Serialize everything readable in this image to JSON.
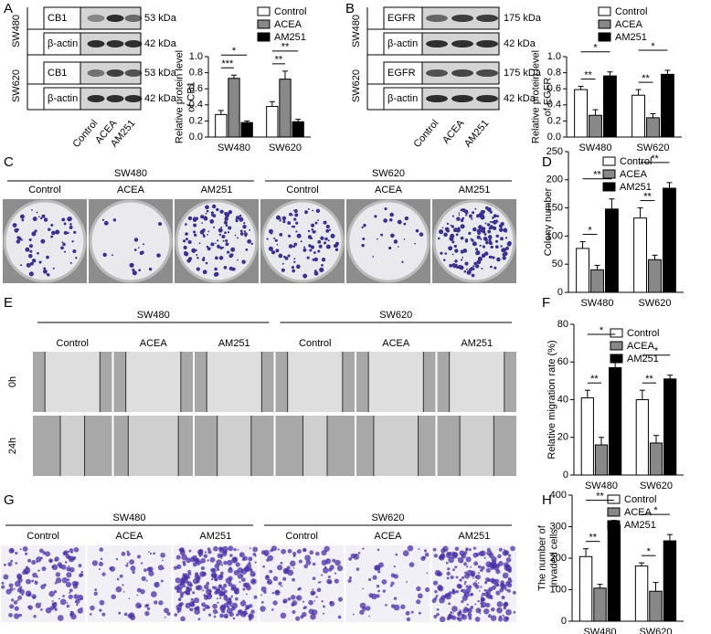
{
  "panels": {
    "letters": [
      "A",
      "B",
      "C",
      "D",
      "E",
      "F",
      "G",
      "H"
    ],
    "blot_A": {
      "cell_lines": [
        "SW480",
        "SW620"
      ],
      "proteins": [
        "CB1",
        "β-actin",
        "CB1",
        "β-actin"
      ],
      "sizes": [
        "53 kDa",
        "42 kDa",
        "53 kDa",
        "42 kDa"
      ],
      "lanes": [
        "Control",
        "ACEA",
        "AM251"
      ]
    },
    "blot_B": {
      "cell_lines": [
        "SW480",
        "SW620"
      ],
      "proteins": [
        "EGFR",
        "β-actin",
        "EGFR",
        "β-actin"
      ],
      "sizes": [
        "175 kDa",
        "42 kDa",
        "175 kDa",
        "42 kDa"
      ],
      "lanes": [
        "Control",
        "ACEA",
        "AM251"
      ]
    },
    "colony": {
      "cell_lines": [
        "SW480",
        "SW620"
      ],
      "lanes": [
        "Control",
        "ACEA",
        "AM251",
        "Control",
        "ACEA",
        "AM251"
      ]
    },
    "wound": {
      "cell_lines": [
        "SW480",
        "SW620"
      ],
      "lanes": [
        "Control",
        "ACEA",
        "AM251",
        "Control",
        "ACEA",
        "AM251"
      ],
      "times": [
        "0h",
        "24h"
      ]
    },
    "invasion": {
      "cell_lines": [
        "SW480",
        "SW620"
      ],
      "lanes": [
        "Control",
        "ACEA",
        "AM251",
        "Control",
        "ACEA",
        "AM251"
      ]
    }
  },
  "chart_data": [
    {
      "type": "bar",
      "y_label": [
        "Relative protein level",
        "of CB1"
      ],
      "categories": [
        "SW480",
        "SW620"
      ],
      "series": [
        {
          "name": "Control",
          "color": "#ffffff",
          "values": [
            0.28,
            0.38
          ],
          "errors": [
            0.05,
            0.06
          ]
        },
        {
          "name": "ACEA",
          "color": "#888888",
          "values": [
            0.73,
            0.72
          ],
          "errors": [
            0.04,
            0.1
          ]
        },
        {
          "name": "AM251",
          "color": "#000000",
          "values": [
            0.18,
            0.19
          ],
          "errors": [
            0.02,
            0.03
          ]
        }
      ],
      "ylim": [
        0,
        1
      ],
      "yticks": [
        {
          "value": 0,
          "label": "0.0"
        },
        0.2,
        0.4,
        0.6,
        0.8,
        {
          "value": 1,
          "label": "1.0"
        }
      ],
      "annotations": [
        "*",
        "***",
        "**",
        "**"
      ]
    },
    {
      "type": "bar",
      "y_label": [
        "Relative protein level",
        "of EGFR"
      ],
      "categories": [
        "SW480",
        "SW620"
      ],
      "series": [
        {
          "name": "Control",
          "color": "#ffffff",
          "values": [
            0.59,
            0.52
          ],
          "errors": [
            0.04,
            0.07
          ]
        },
        {
          "name": "ACEA",
          "color": "#888888",
          "values": [
            0.27,
            0.24
          ],
          "errors": [
            0.07,
            0.05
          ]
        },
        {
          "name": "AM251",
          "color": "#000000",
          "values": [
            0.76,
            0.78
          ],
          "errors": [
            0.05,
            0.05
          ]
        }
      ],
      "ylim": [
        0,
        1
      ],
      "yticks": [
        {
          "value": 0,
          "label": "0.0"
        },
        0.2,
        0.4,
        0.6,
        0.8,
        {
          "value": 1,
          "label": "1.0"
        }
      ],
      "annotations": [
        "*",
        "**",
        "*",
        "**"
      ]
    },
    {
      "type": "bar",
      "y_label": [
        "Colony number"
      ],
      "categories": [
        "SW480",
        "SW620"
      ],
      "series": [
        {
          "name": "Control",
          "color": "#ffffff",
          "values": [
            78,
            132
          ],
          "errors": [
            12,
            18
          ]
        },
        {
          "name": "ACEA",
          "color": "#888888",
          "values": [
            40,
            58
          ],
          "errors": [
            8,
            8
          ]
        },
        {
          "name": "AM251",
          "color": "#000000",
          "values": [
            148,
            185
          ],
          "errors": [
            18,
            10
          ]
        }
      ],
      "ylim": [
        0,
        250
      ],
      "yticks": [
        0,
        50,
        100,
        150,
        200,
        250
      ],
      "annotations": [
        "**",
        "*",
        "**",
        "**"
      ]
    },
    {
      "type": "bar",
      "y_label": [
        "Relative migration rate (%)"
      ],
      "categories": [
        "SW480",
        "SW620"
      ],
      "series": [
        {
          "name": "Control",
          "color": "#ffffff",
          "values": [
            41,
            40
          ],
          "errors": [
            4,
            5
          ]
        },
        {
          "name": "ACEA",
          "color": "#888888",
          "values": [
            16,
            17
          ],
          "errors": [
            4,
            4
          ]
        },
        {
          "name": "AM251",
          "color": "#000000",
          "values": [
            57,
            51
          ],
          "errors": [
            7,
            2
          ]
        }
      ],
      "ylim": [
        0,
        80
      ],
      "yticks": [
        0,
        20,
        40,
        60,
        80
      ],
      "annotations": [
        "*",
        "**",
        "*",
        "**"
      ]
    },
    {
      "type": "bar",
      "y_label": [
        "The number of",
        "invaded cells"
      ],
      "categories": [
        "SW480",
        "SW620"
      ],
      "series": [
        {
          "name": "Control",
          "color": "#ffffff",
          "values": [
            205,
            175
          ],
          "errors": [
            25,
            10
          ]
        },
        {
          "name": "ACEA",
          "color": "#888888",
          "values": [
            105,
            95
          ],
          "errors": [
            12,
            28
          ]
        },
        {
          "name": "AM251",
          "color": "#000000",
          "values": [
            305,
            255
          ],
          "errors": [
            15,
            20
          ]
        }
      ],
      "ylim": [
        0,
        400
      ],
      "yticks": [
        0,
        100,
        200,
        300,
        400
      ],
      "annotations": [
        "**",
        "**",
        "*",
        "*"
      ]
    }
  ]
}
